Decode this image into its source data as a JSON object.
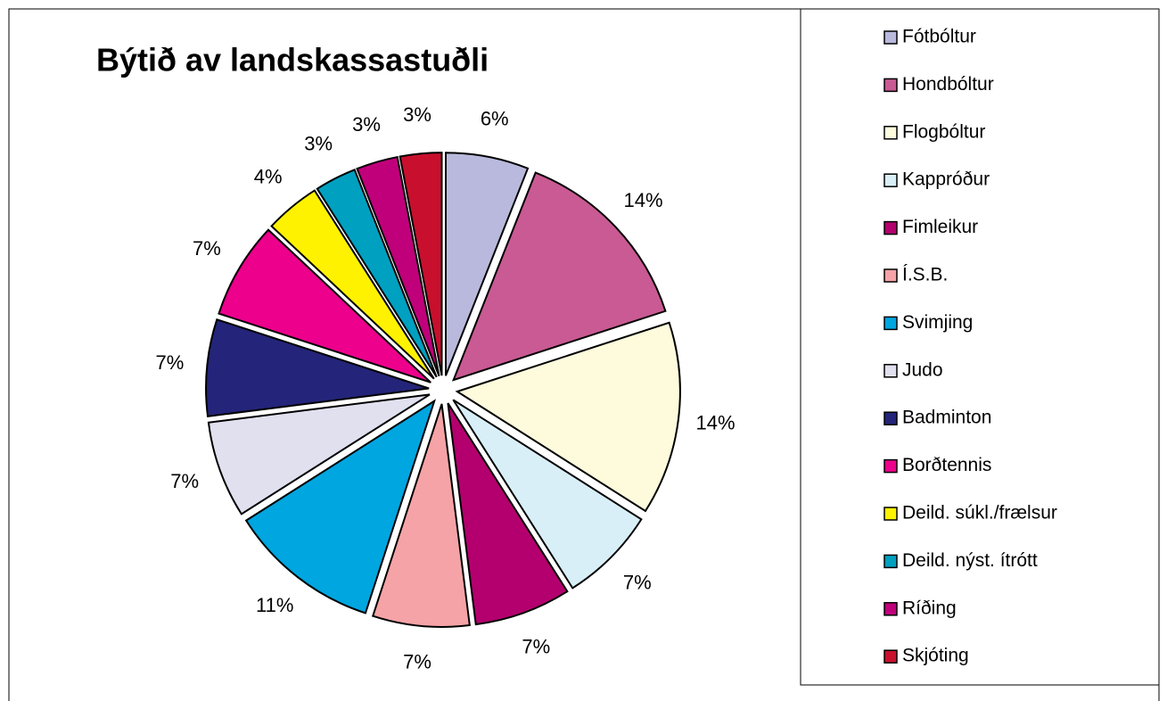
{
  "chart_data": {
    "type": "pie",
    "title": "Býtið av landskassastuðli",
    "categories": [
      "Fótbóltur",
      "Hondbóltur",
      "Flogbóltur",
      "Kappróður",
      "Fimleikur",
      "Í.S.B.",
      "Svimjing",
      "Judo",
      "Badminton",
      "Borðtennis",
      "Deild. súkl./frælsur",
      "Deild. nýst. ítrótt",
      "Ríðing",
      "Skjóting"
    ],
    "values": [
      6,
      14,
      14,
      7,
      7,
      7,
      11,
      7,
      7,
      7,
      4,
      3,
      3,
      3
    ],
    "value_labels": [
      "6%",
      "14%",
      "14%",
      "7%",
      "7%",
      "7%",
      "11%",
      "7%",
      "7%",
      "7%",
      "4%",
      "3%",
      "3%",
      "3%"
    ],
    "colors": [
      "#b9b9dd",
      "#c95a93",
      "#fdfbdc",
      "#d9eff7",
      "#b4006e",
      "#f5a3a6",
      "#00a6e0",
      "#e0e0ef",
      "#24247a",
      "#ec008c",
      "#fff200",
      "#00a0c0",
      "#c0007a",
      "#c8102e"
    ],
    "legend": "right"
  }
}
